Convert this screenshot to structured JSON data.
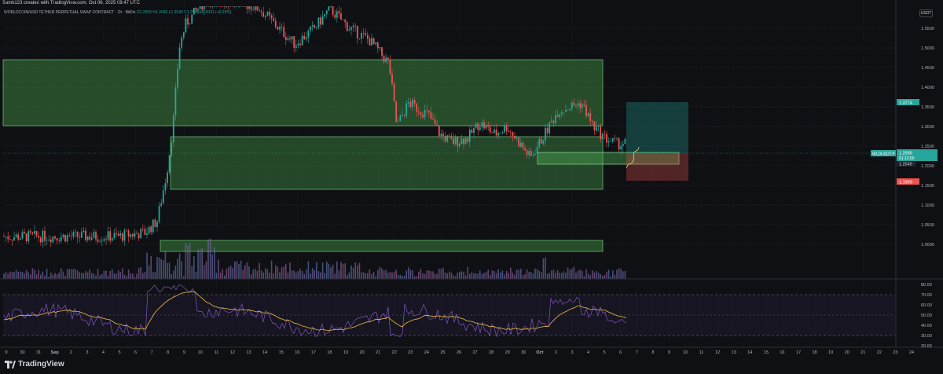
{
  "header": {
    "attribution": "Samk123 created with TradingView.com, Oct 06, 2025 08:47 UTC",
    "symbol_line": "WORLDCOIN/USD TETHER PERPETUAL SWAP CONTRACT · 2h · BitFin",
    "ohlc": "O1.2555  H1.2640  L1.2540  C1.2585  +0.0031 (+0.25%)",
    "currency": "USDT"
  },
  "price_axis": {
    "ticks": [
      "1.5500",
      "1.5000",
      "1.4500",
      "1.4000",
      "1.3500",
      "1.3000",
      "1.2500",
      "1.2000",
      "1.1500",
      "1.1000",
      "1.0500",
      "1.0000"
    ],
    "labels": {
      "target": "1.3774",
      "symbol_tag": "WLDUSDT.P",
      "last_price": "1.2585",
      "countdown": "01:12:00",
      "entry": "1.2549",
      "stop": "1.1959"
    }
  },
  "rsi_axis": {
    "ticks": [
      "80.00",
      "70.00",
      "60.00",
      "50.00",
      "40.00",
      "30.00",
      "20.00"
    ]
  },
  "time_axis": {
    "ticks": [
      "9",
      "30",
      "31",
      "Sep",
      "2",
      "3",
      "4",
      "5",
      "6",
      "7",
      "8",
      "9",
      "10",
      "11",
      "12",
      "13",
      "14",
      "15",
      "16",
      "17",
      "18",
      "19",
      "20",
      "21",
      "22",
      "23",
      "24",
      "25",
      "26",
      "27",
      "28",
      "29",
      "30",
      "Oct",
      "2",
      "3",
      "4",
      "5",
      "6",
      "7",
      "8",
      "9",
      "10",
      "11",
      "12",
      "13",
      "14",
      "15",
      "16",
      "17",
      "18",
      "19",
      "20",
      "21",
      "22",
      "23",
      "24"
    ]
  },
  "footer": {
    "brand": "TradingView"
  },
  "colors": {
    "background": "#0f1014",
    "up": "#26a69a",
    "down": "#ef5350",
    "zone": "#4caf50",
    "rsi": "#7e57c2",
    "rsi_ma": "#f0c040",
    "target_box": "#26a69a",
    "stop_box": "#ef5350"
  }
}
